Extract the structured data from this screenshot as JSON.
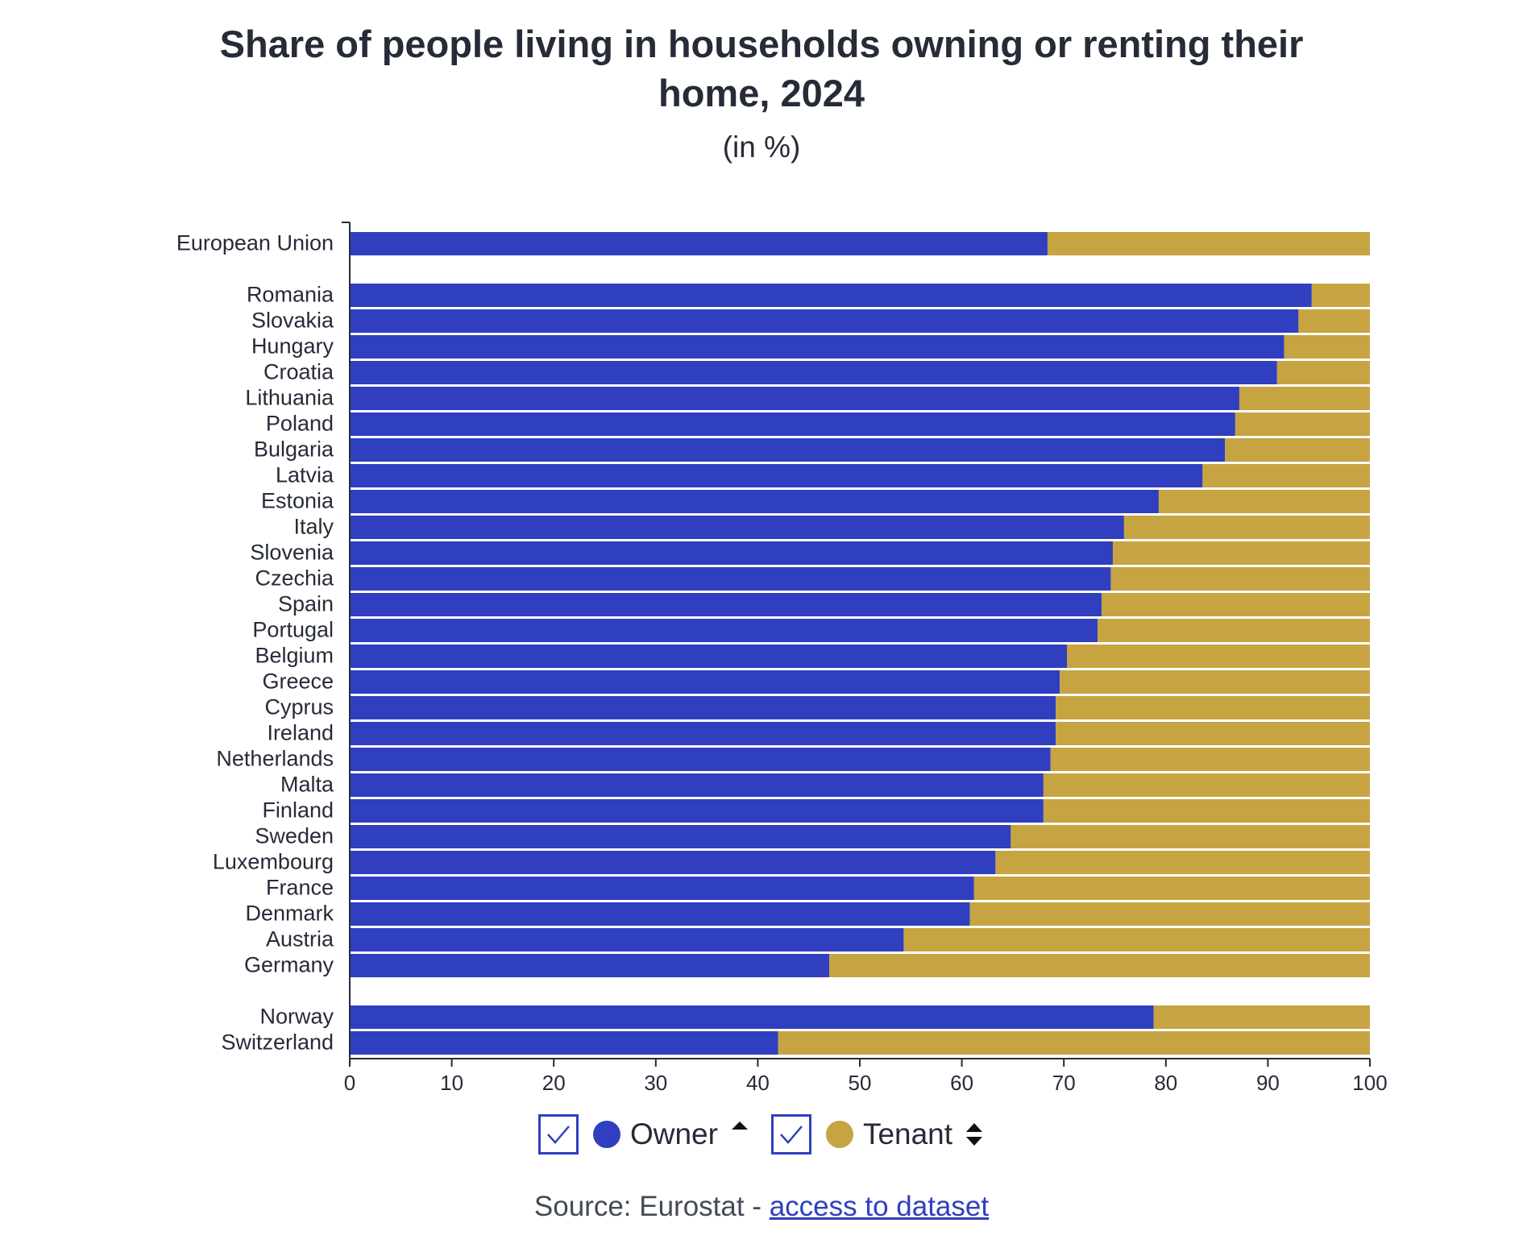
{
  "title_line1": "Share of people living in households owning or renting their",
  "title_line2": "home, 2024",
  "subtitle": "(in %)",
  "colors": {
    "owner": "#2f3fbf",
    "tenant": "#c6a441",
    "axis": "#262b38"
  },
  "legend": {
    "owner_label": "Owner",
    "tenant_label": "Tenant",
    "owner_sort_icon": "sort-ascending-icon",
    "tenant_sort_icon": "sort-both-icon"
  },
  "source": {
    "prefix": "Source: Eurostat - ",
    "link_text": "access to dataset"
  },
  "chart_data": {
    "type": "bar",
    "orientation": "horizontal",
    "stacked": true,
    "xlim": [
      0,
      100
    ],
    "x_ticks": [
      "0",
      "10",
      "20",
      "30",
      "40",
      "50",
      "60",
      "70",
      "80",
      "90",
      "100"
    ],
    "grid": false,
    "legend_position": "bottom-center",
    "groups": [
      [
        "European Union"
      ],
      [
        "Romania",
        "Slovakia",
        "Hungary",
        "Croatia",
        "Lithuania",
        "Poland",
        "Bulgaria",
        "Latvia",
        "Estonia",
        "Italy",
        "Slovenia",
        "Czechia",
        "Spain",
        "Portugal",
        "Belgium",
        "Greece",
        "Cyprus",
        "Ireland",
        "Netherlands",
        "Malta",
        "Finland",
        "Sweden",
        "Luxembourg",
        "France",
        "Denmark",
        "Austria",
        "Germany"
      ],
      [
        "Norway",
        "Switzerland"
      ]
    ],
    "categories": [
      "European Union",
      "Romania",
      "Slovakia",
      "Hungary",
      "Croatia",
      "Lithuania",
      "Poland",
      "Bulgaria",
      "Latvia",
      "Estonia",
      "Italy",
      "Slovenia",
      "Czechia",
      "Spain",
      "Portugal",
      "Belgium",
      "Greece",
      "Cyprus",
      "Ireland",
      "Netherlands",
      "Malta",
      "Finland",
      "Sweden",
      "Luxembourg",
      "France",
      "Denmark",
      "Austria",
      "Germany",
      "Norway",
      "Switzerland"
    ],
    "series": [
      {
        "name": "Owner",
        "values": [
          68.4,
          94.3,
          93.0,
          91.6,
          90.9,
          87.2,
          86.8,
          85.8,
          83.6,
          79.3,
          75.9,
          74.8,
          74.6,
          73.7,
          73.3,
          70.3,
          69.6,
          69.2,
          69.2,
          68.7,
          68.0,
          68.0,
          64.8,
          63.3,
          61.2,
          60.8,
          54.3,
          47.0,
          78.8,
          42.0
        ]
      },
      {
        "name": "Tenant",
        "values": [
          31.6,
          5.7,
          7.0,
          8.4,
          9.1,
          12.8,
          13.2,
          14.2,
          16.4,
          20.7,
          24.1,
          25.2,
          25.4,
          26.3,
          26.7,
          29.7,
          30.4,
          30.8,
          30.8,
          31.3,
          32.0,
          32.0,
          35.2,
          36.7,
          38.8,
          39.2,
          45.7,
          53.0,
          21.2,
          58.0
        ]
      }
    ]
  }
}
